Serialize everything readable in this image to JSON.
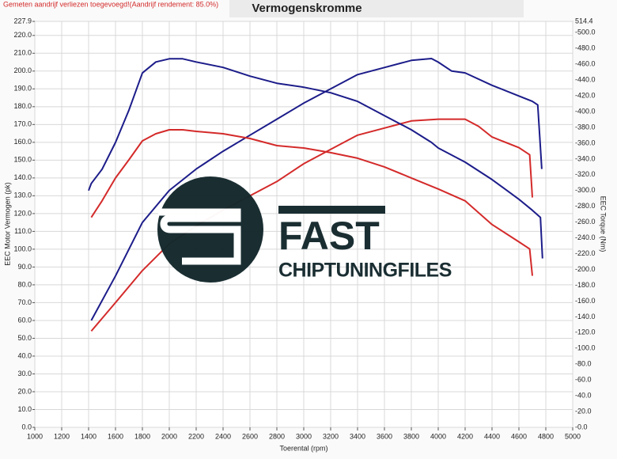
{
  "chart_data": {
    "type": "line",
    "title": "Vermogenskromme",
    "note": "Gemeten aandrijf verliezen toegevoegd!(Aandrijf rendement: 85.0%)",
    "xlabel": "Toerental (rpm)",
    "ylabel": "EEC Motor Vermogen (pk)",
    "y2label": "EEC Torque (Nm)",
    "watermark": [
      "FAST",
      "CHIPTUNINGFILES"
    ],
    "grid": true,
    "xlim": [
      1000,
      5000
    ],
    "xticks": [
      1000,
      1200,
      1400,
      1600,
      1800,
      2000,
      2200,
      2400,
      2600,
      2800,
      3000,
      3200,
      3400,
      3600,
      3800,
      4000,
      4200,
      4400,
      4600,
      4800,
      5000
    ],
    "ylim": [
      0,
      227.9
    ],
    "yticks": [
      {
        "value": 0,
        "label": "0.0"
      },
      {
        "value": 10,
        "label": "10.0"
      },
      {
        "value": 20,
        "label": "20.0"
      },
      {
        "value": 30,
        "label": "30.0"
      },
      {
        "value": 40,
        "label": "40.0"
      },
      {
        "value": 50,
        "label": "50.0"
      },
      {
        "value": 60,
        "label": "60.0"
      },
      {
        "value": 70,
        "label": "70.0"
      },
      {
        "value": 80,
        "label": "80.0"
      },
      {
        "value": 90,
        "label": "90.0"
      },
      {
        "value": 100,
        "label": "100.0"
      },
      {
        "value": 110,
        "label": "110.0"
      },
      {
        "value": 120,
        "label": "120.0"
      },
      {
        "value": 130,
        "label": "130.0"
      },
      {
        "value": 140,
        "label": "140.0"
      },
      {
        "value": 150,
        "label": "150.0"
      },
      {
        "value": 160,
        "label": "160.0"
      },
      {
        "value": 170,
        "label": "170.0"
      },
      {
        "value": 180,
        "label": "180.0"
      },
      {
        "value": 190,
        "label": "190.0"
      },
      {
        "value": 200,
        "label": "200.0"
      },
      {
        "value": 210,
        "label": "210.0"
      },
      {
        "value": 220,
        "label": "220.0"
      },
      227.9
    ],
    "y2lim": [
      0,
      514.4
    ],
    "y2ticks": [
      {
        "value": 0,
        "label": "-0.0"
      },
      {
        "value": 20,
        "label": "-20.0"
      },
      {
        "value": 40,
        "label": "-40.0"
      },
      {
        "value": 60,
        "label": "-60.0"
      },
      {
        "value": 80,
        "label": "-80.0"
      },
      {
        "value": 100,
        "label": "-100.0"
      },
      {
        "value": 120,
        "label": "-120.0"
      },
      {
        "value": 140,
        "label": "-140.0"
      },
      {
        "value": 160,
        "label": "-160.0"
      },
      {
        "value": 180,
        "label": "-180.0"
      },
      {
        "value": 200,
        "label": "-200.0"
      },
      {
        "value": 220,
        "label": "-220.0"
      },
      {
        "value": 240,
        "label": "-240.0"
      },
      {
        "value": 260,
        "label": "-260.0"
      },
      {
        "value": 280,
        "label": "-280.0"
      },
      {
        "value": 300,
        "label": "-300.0"
      },
      {
        "value": 320,
        "label": "-320.0"
      },
      {
        "value": 340,
        "label": "-340.0"
      },
      {
        "value": 360,
        "label": "-360.0"
      },
      {
        "value": 380,
        "label": "-380.0"
      },
      {
        "value": 400,
        "label": "-400.0"
      },
      {
        "value": 420,
        "label": "-420.0"
      },
      {
        "value": 440,
        "label": "-440.0"
      },
      {
        "value": 460,
        "label": "-460.0"
      },
      {
        "value": 480,
        "label": "-480.0"
      },
      {
        "value": 500,
        "label": "-500.0"
      },
      514.4
    ],
    "series": [
      {
        "color": "#1c1c8a",
        "x": [
          1420,
          1600,
          1800,
          2000,
          2200,
          2400,
          2600,
          2800,
          3000,
          3200,
          3400,
          3600,
          3800,
          3950,
          4000,
          4100,
          4200,
          4400,
          4600,
          4700,
          4740,
          4770
        ],
        "values": [
          60,
          85,
          115,
          133,
          145,
          155,
          164,
          173,
          182,
          190,
          198,
          202,
          206,
          207,
          205,
          200,
          199,
          192,
          186,
          183,
          181,
          145
        ]
      },
      {
        "color": "#d42a2a",
        "x": [
          1420,
          1600,
          1800,
          2000,
          2200,
          2400,
          2600,
          2800,
          3000,
          3200,
          3400,
          3600,
          3800,
          4000,
          4200,
          4300,
          4400,
          4600,
          4680,
          4700
        ],
        "values": [
          54,
          70,
          88,
          103,
          113,
          122,
          130,
          138,
          148,
          156,
          164,
          168,
          172,
          173,
          173,
          169,
          163,
          157,
          153,
          129
        ]
      },
      {
        "color": "#1c1c8a",
        "axis": "y2",
        "x": [
          1400,
          1420,
          1500,
          1600,
          1700,
          1800,
          1900,
          2000,
          2100,
          2200,
          2400,
          2600,
          2800,
          3000,
          3200,
          3400,
          3600,
          3800,
          3950,
          4000,
          4200,
          4400,
          4600,
          4700,
          4760,
          4775
        ],
        "values": [
          300,
          309,
          327,
          361,
          402,
          449,
          463,
          467,
          467,
          463,
          456,
          445,
          436,
          431,
          424,
          413,
          395,
          377,
          361,
          354,
          336,
          314,
          289,
          275,
          266,
          214
        ]
      },
      {
        "color": "#d42a2a",
        "axis": "y2",
        "x": [
          1420,
          1500,
          1600,
          1700,
          1800,
          1900,
          2000,
          2100,
          2200,
          2400,
          2600,
          2800,
          3000,
          3200,
          3400,
          3600,
          3800,
          4000,
          4200,
          4400,
          4600,
          4680,
          4700
        ],
        "values": [
          266,
          287,
          316,
          339,
          363,
          372,
          377,
          377,
          375,
          372,
          366,
          357,
          354,
          348,
          341,
          330,
          316,
          302,
          287,
          257,
          235,
          226,
          192
        ]
      }
    ]
  }
}
